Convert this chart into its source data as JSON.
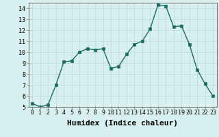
{
  "x": [
    0,
    1,
    2,
    3,
    4,
    5,
    6,
    7,
    8,
    9,
    10,
    11,
    12,
    13,
    14,
    15,
    16,
    17,
    18,
    19,
    20,
    21,
    22,
    23
  ],
  "y": [
    5.3,
    5.0,
    5.2,
    7.0,
    9.1,
    9.2,
    10.0,
    10.3,
    10.2,
    10.3,
    8.5,
    8.7,
    9.8,
    10.7,
    11.0,
    12.1,
    14.3,
    14.2,
    12.3,
    12.4,
    10.7,
    8.4,
    7.1,
    6.0
  ],
  "xlabel": "Humidex (Indice chaleur)",
  "ylim": [
    5,
    14.5
  ],
  "xlim": [
    -0.5,
    23.5
  ],
  "yticks": [
    5,
    6,
    7,
    8,
    9,
    10,
    11,
    12,
    13,
    14
  ],
  "xticks": [
    0,
    1,
    2,
    3,
    4,
    5,
    6,
    7,
    8,
    9,
    10,
    11,
    12,
    13,
    14,
    15,
    16,
    17,
    18,
    19,
    20,
    21,
    22,
    23
  ],
  "line_color": "#1a6b5e",
  "marker_color": "#1a6b5e",
  "bg_color": "#d8f0f0",
  "grid_color": "#b8d8d4",
  "tick_label_fontsize": 6.0,
  "xlabel_fontsize": 8.0
}
